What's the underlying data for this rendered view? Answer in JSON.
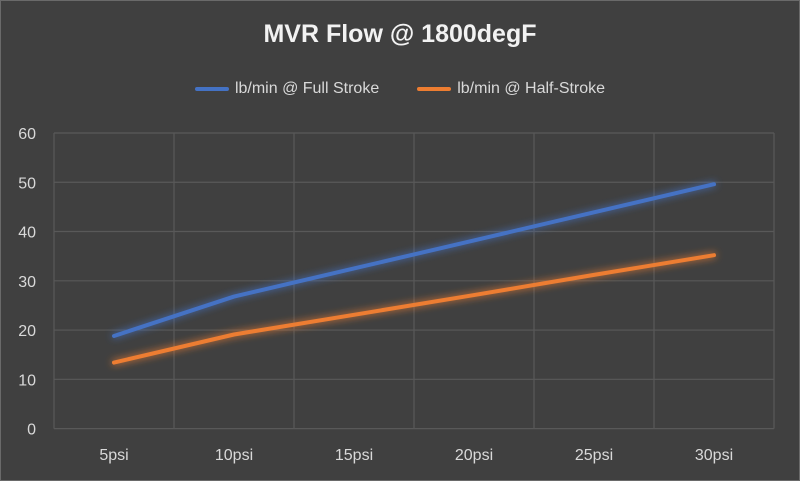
{
  "chart_data": {
    "type": "line",
    "title": "MVR Flow @ 1800degF",
    "categories": [
      "5psi",
      "10psi",
      "15psi",
      "20psi",
      "25psi",
      "30psi"
    ],
    "series": [
      {
        "name": "lb/min @ Full Stroke",
        "color": "#4472c4",
        "values": [
          18.8,
          26.8,
          32.5,
          38.2,
          43.9,
          49.6
        ]
      },
      {
        "name": "lb/min @ Half-Stroke",
        "color": "#ed7d31",
        "values": [
          13.4,
          19.1,
          23.1,
          27.1,
          31.2,
          35.2
        ]
      }
    ],
    "ylim": [
      0,
      60
    ],
    "yticks": [
      "0",
      "10",
      "20",
      "30",
      "40",
      "50",
      "60"
    ],
    "grid": true,
    "legend": "top",
    "xlabel": "",
    "ylabel": ""
  }
}
